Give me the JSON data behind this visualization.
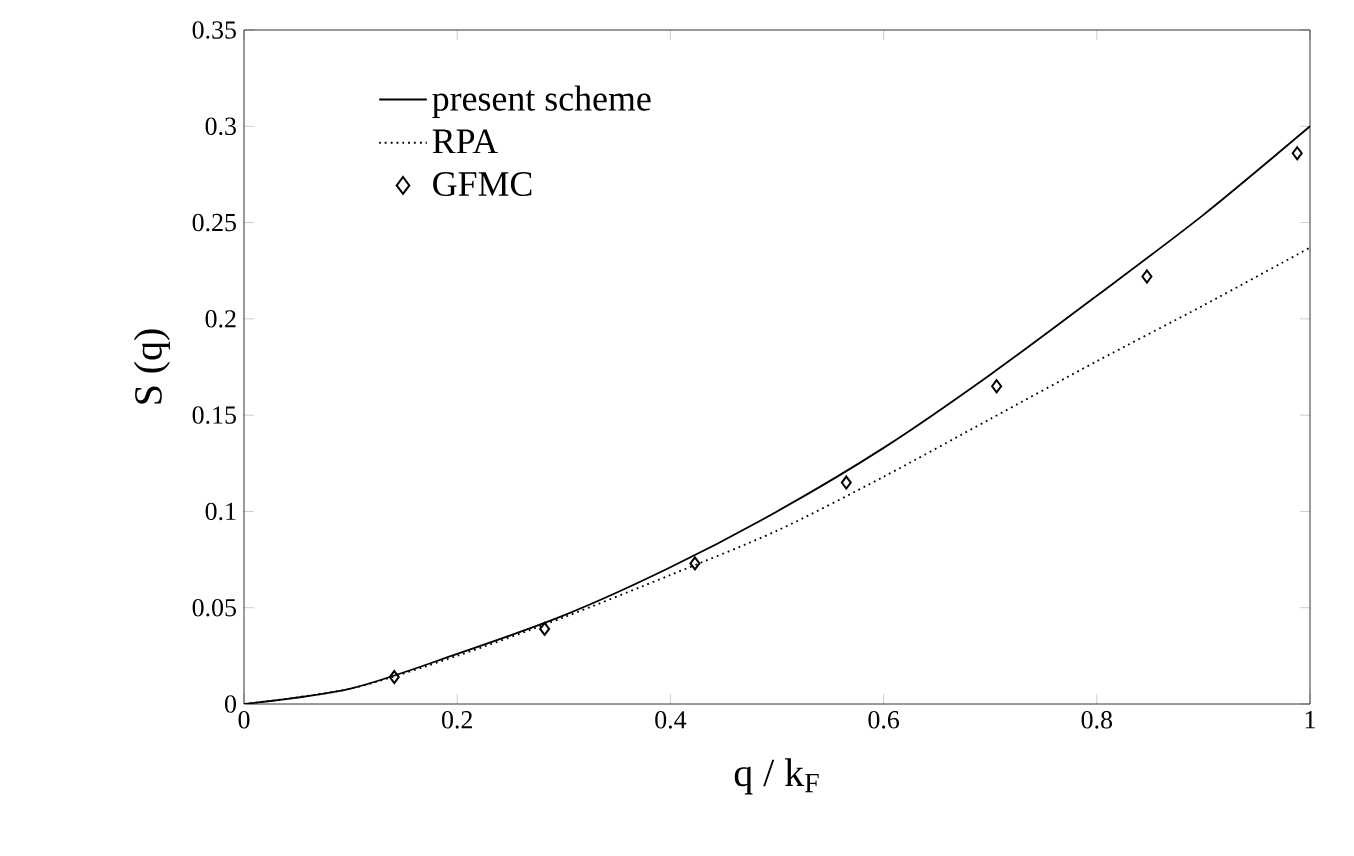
{
  "chart_data": {
    "type": "line",
    "xlabel": "q / k$_{F}$",
    "ylabel": "S (q)",
    "xlim": [
      0,
      1
    ],
    "ylim": [
      0,
      0.35
    ],
    "xticks": [
      0,
      0.2,
      0.4,
      0.6,
      0.8,
      1
    ],
    "yticks": [
      0,
      0.05,
      0.1,
      0.15,
      0.2,
      0.25,
      0.3,
      0.35
    ],
    "legend": "top left",
    "grid": false,
    "series": [
      {
        "name": "present scheme",
        "color": "#000000",
        "line_style": "solid",
        "x": [
          0,
          0.1,
          0.2,
          0.3,
          0.4,
          0.5,
          0.6,
          0.7,
          0.8,
          0.9,
          1.0
        ],
        "values": [
          0,
          0.008,
          0.026,
          0.046,
          0.071,
          0.1,
          0.133,
          0.171,
          0.212,
          0.254,
          0.3
        ]
      },
      {
        "name": "RPA",
        "color": "#000000",
        "line_style": "dotted",
        "x": [
          0,
          0.1,
          0.2,
          0.3,
          0.4,
          0.5,
          0.6,
          0.7,
          0.8,
          0.9,
          1.0
        ],
        "values": [
          0,
          0.008,
          0.025,
          0.045,
          0.067,
          0.09,
          0.118,
          0.148,
          0.178,
          0.207,
          0.237
        ]
      },
      {
        "name": "GFMC",
        "type": "scatter",
        "color": "#000000",
        "marker": "diamond",
        "x": [
          0.141,
          0.282,
          0.423,
          0.565,
          0.706,
          0.847,
          0.988
        ],
        "values": [
          0.014,
          0.039,
          0.073,
          0.115,
          0.165,
          0.222,
          0.286
        ]
      }
    ]
  }
}
